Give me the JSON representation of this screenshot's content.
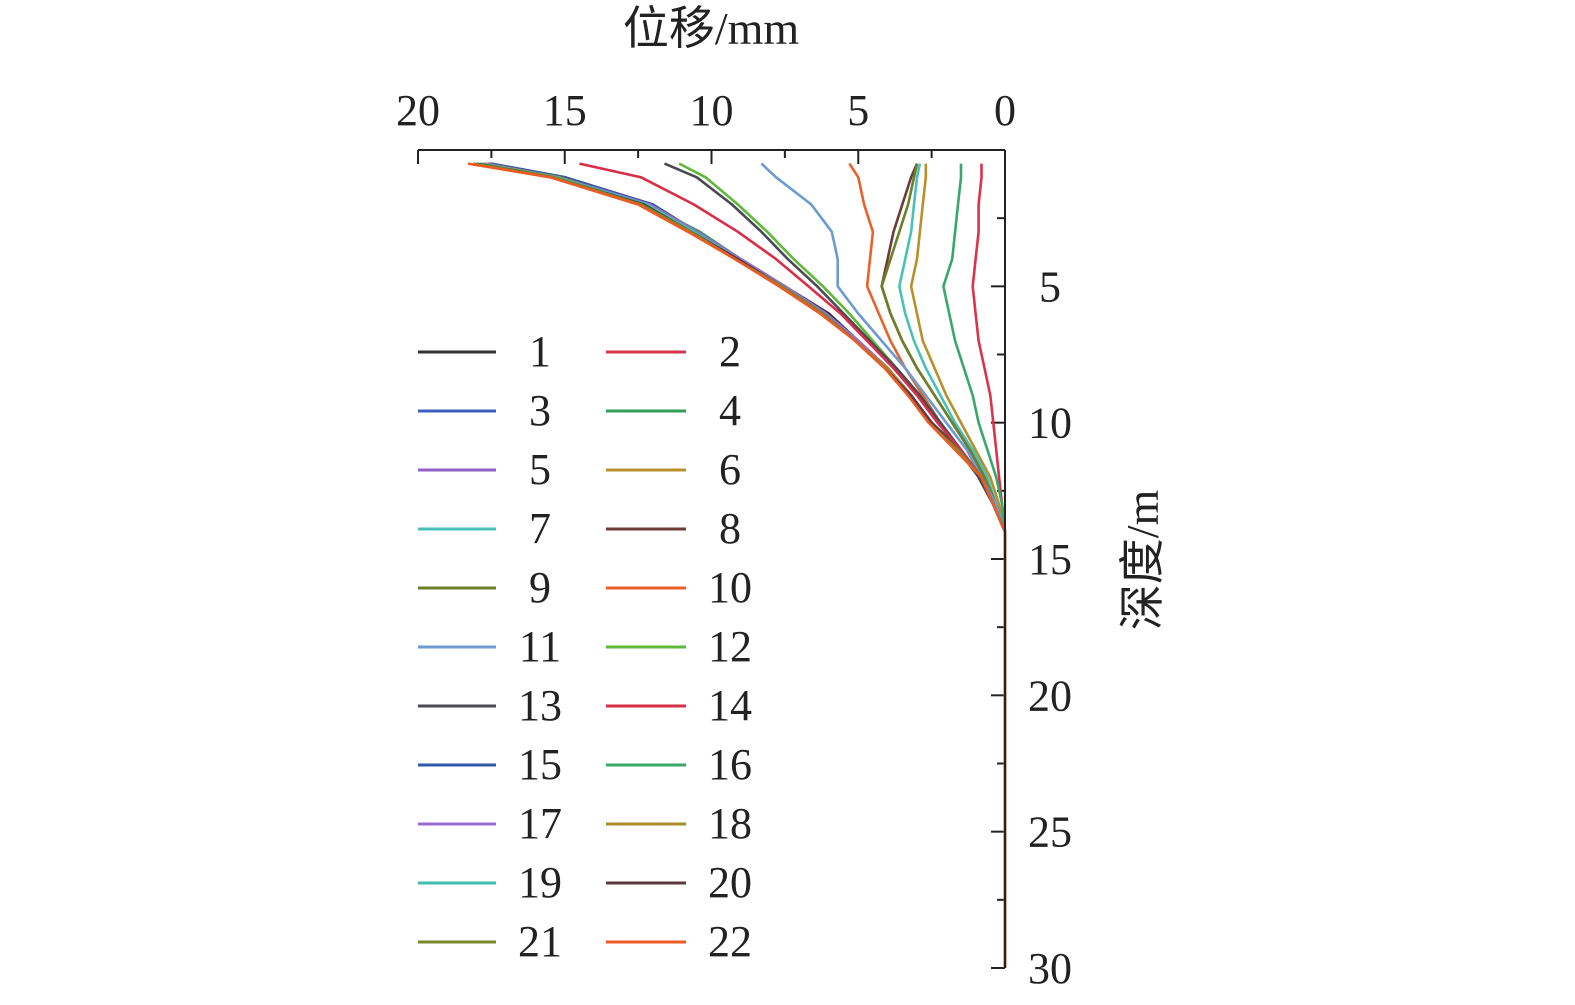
{
  "chart_data": {
    "type": "line",
    "xlabel": "位移/mm",
    "ylabel": "深度/m",
    "xlim": [
      20,
      0
    ],
    "ylim": [
      0,
      30
    ],
    "x_ticks": [
      "20",
      "15",
      "10",
      "5",
      "0"
    ],
    "y_ticks": [
      "5",
      "10",
      "15",
      "20",
      "25",
      "30"
    ],
    "x_axis_position": "top",
    "y_axis_position": "right",
    "x_reversed": true,
    "y_inverted": true,
    "grid": false,
    "legend_placement": "lower-left",
    "depth": [
      0.5,
      1,
      2,
      3,
      4,
      5,
      6,
      7,
      8,
      9,
      10,
      11,
      12,
      13,
      14,
      15,
      16,
      17,
      18,
      19,
      20,
      21,
      22,
      23,
      24,
      25,
      26,
      27,
      28,
      29,
      30
    ],
    "series": [
      {
        "name": "1",
        "color": "#333333",
        "values": [
          17.5,
          15,
          12,
          10.5,
          9,
          7.5,
          6,
          5,
          4,
          3.2,
          2.5,
          1.5,
          0.8,
          0.4,
          0,
          0,
          0,
          0,
          0,
          0,
          0,
          0,
          0,
          0,
          0,
          0,
          0,
          0,
          0,
          0,
          0
        ]
      },
      {
        "name": "2",
        "color": "#d9344a",
        "values": [
          0.8,
          0.8,
          0.9,
          0.9,
          1,
          1.1,
          1,
          0.9,
          0.7,
          0.5,
          0.4,
          0.3,
          0.2,
          0.1,
          0,
          0,
          0,
          0,
          0,
          0,
          0,
          0,
          0,
          0,
          0,
          0,
          0,
          0,
          0,
          0,
          0
        ]
      },
      {
        "name": "3",
        "color": "#3a5fbf",
        "values": [
          17.5,
          15,
          12.2,
          10.5,
          9,
          7.6,
          6.2,
          5,
          4,
          3.2,
          2.5,
          1.6,
          0.8,
          0.4,
          0,
          0,
          0,
          0,
          0,
          0,
          0,
          0,
          0,
          0,
          0,
          0,
          0,
          0,
          0,
          0,
          0
        ]
      },
      {
        "name": "4",
        "color": "#2e9e5a",
        "values": [
          17.6,
          15,
          12.2,
          10.4,
          9,
          7.5,
          6.1,
          5,
          4,
          3.2,
          2.5,
          1.6,
          0.9,
          0.4,
          0,
          0,
          0,
          0,
          0,
          0,
          0,
          0,
          0,
          0,
          0,
          0,
          0,
          0,
          0,
          0,
          0
        ]
      },
      {
        "name": "5",
        "color": "#8e63c9",
        "values": [
          17.6,
          15.1,
          12.1,
          10.5,
          9,
          7.5,
          6.1,
          5,
          4,
          3.2,
          2.5,
          1.6,
          0.8,
          0.4,
          0,
          0,
          0,
          0,
          0,
          0,
          0,
          0,
          0,
          0,
          0,
          0,
          0,
          0,
          0,
          0,
          0
        ]
      },
      {
        "name": "6",
        "color": "#b8902a",
        "values": [
          2.7,
          2.7,
          2.8,
          2.9,
          3,
          3.2,
          3,
          2.8,
          2.4,
          2,
          1.5,
          1,
          0.5,
          0.2,
          0,
          0,
          0,
          0,
          0,
          0,
          0,
          0,
          0,
          0,
          0,
          0,
          0,
          0,
          0,
          0,
          0
        ]
      },
      {
        "name": "7",
        "color": "#48c2b8",
        "values": [
          2.9,
          3,
          3.1,
          3.2,
          3.4,
          3.6,
          3.4,
          3.1,
          2.7,
          2.2,
          1.7,
          1.1,
          0.6,
          0.3,
          0,
          0,
          0,
          0,
          0,
          0,
          0,
          0,
          0,
          0,
          0,
          0,
          0,
          0,
          0,
          0,
          0
        ]
      },
      {
        "name": "8",
        "color": "#6e3b3b",
        "values": [
          3,
          3.2,
          3.5,
          3.8,
          4,
          4.2,
          3.9,
          3.5,
          3,
          2.4,
          1.8,
          1.2,
          0.7,
          0.3,
          0,
          0,
          0,
          0,
          0,
          0,
          0,
          0,
          0,
          0,
          0,
          0,
          0,
          0,
          0,
          0,
          0
        ]
      },
      {
        "name": "9",
        "color": "#6e7f2a",
        "values": [
          3,
          3.1,
          3.3,
          3.6,
          3.9,
          4.2,
          3.9,
          3.5,
          3,
          2.4,
          1.8,
          1.2,
          0.7,
          0.3,
          0,
          0,
          0,
          0,
          0,
          0,
          0,
          0,
          0,
          0,
          0,
          0,
          0,
          0,
          0,
          0,
          0
        ]
      },
      {
        "name": "10",
        "color": "#e8622a",
        "values": [
          5.3,
          5,
          4.8,
          4.5,
          4.6,
          4.7,
          4.3,
          3.9,
          3.4,
          2.8,
          2.2,
          1.5,
          0.9,
          0.4,
          0,
          0,
          0,
          0,
          0,
          0,
          0,
          0,
          0,
          0,
          0,
          0,
          0,
          0,
          0,
          0,
          0
        ]
      },
      {
        "name": "11",
        "color": "#6b9bd1",
        "values": [
          8.3,
          7.8,
          6.6,
          5.9,
          5.7,
          5.7,
          5,
          4.2,
          3.4,
          2.7,
          2,
          1.3,
          0.8,
          0.3,
          0,
          0,
          0,
          0,
          0,
          0,
          0,
          0,
          0,
          0,
          0,
          0,
          0,
          0,
          0,
          0,
          0
        ]
      },
      {
        "name": "12",
        "color": "#5fb83a",
        "values": [
          11.1,
          10.2,
          9.1,
          8.1,
          7.2,
          6.2,
          5.3,
          4.5,
          3.7,
          2.9,
          2.2,
          1.5,
          0.9,
          0.4,
          0,
          0,
          0,
          0,
          0,
          0,
          0,
          0,
          0,
          0,
          0,
          0,
          0,
          0,
          0,
          0,
          0
        ]
      },
      {
        "name": "13",
        "color": "#4a4a52",
        "values": [
          11.6,
          10.5,
          9.3,
          8.3,
          7.4,
          6.4,
          5.5,
          4.6,
          3.7,
          2.9,
          2.2,
          1.5,
          0.9,
          0.4,
          0,
          0,
          0,
          0,
          0,
          0,
          0,
          0,
          0,
          0,
          0,
          0,
          0,
          0,
          0,
          0,
          0
        ]
      },
      {
        "name": "14",
        "color": "#d92e48",
        "values": [
          14.5,
          12.4,
          10.6,
          9.1,
          7.8,
          6.7,
          5.6,
          4.7,
          3.8,
          3,
          2.3,
          1.5,
          0.8,
          0.4,
          0,
          0,
          0,
          0,
          0,
          0,
          0,
          0,
          0,
          0,
          0,
          0,
          0,
          0,
          0,
          0,
          0
        ]
      },
      {
        "name": "15",
        "color": "#2d5aa8",
        "values": [
          17.6,
          15,
          12,
          10.6,
          9.1,
          7.6,
          6.2,
          5,
          4,
          3.2,
          2.5,
          1.6,
          0.8,
          0.4,
          0,
          0,
          0,
          0,
          0,
          0,
          0,
          0,
          0,
          0,
          0,
          0,
          0,
          0,
          0,
          0,
          0
        ]
      },
      {
        "name": "16",
        "color": "#38a86a",
        "values": [
          1.5,
          1.5,
          1.6,
          1.7,
          1.8,
          2.1,
          1.9,
          1.7,
          1.4,
          1.1,
          0.9,
          0.6,
          0.3,
          0.1,
          0,
          0,
          0,
          0,
          0,
          0,
          0,
          0,
          0,
          0,
          0,
          0,
          0,
          0,
          0,
          0,
          0
        ]
      },
      {
        "name": "17",
        "color": "#9a6cd6",
        "values": [
          17.7,
          15.2,
          12.1,
          10.5,
          9,
          7.5,
          6.1,
          5,
          4,
          3.2,
          2.5,
          1.6,
          0.8,
          0.4,
          0,
          0,
          0,
          0,
          0,
          0,
          0,
          0,
          0,
          0,
          0,
          0,
          0,
          0,
          0,
          0,
          0
        ]
      },
      {
        "name": "18",
        "color": "#a88a2a",
        "values": [
          17.8,
          15.2,
          12.3,
          10.6,
          9.1,
          7.6,
          6.2,
          5.1,
          4,
          3.2,
          2.5,
          1.6,
          0.8,
          0.4,
          0,
          0,
          0,
          0,
          0,
          0,
          0,
          0,
          0,
          0,
          0,
          0,
          0,
          0,
          0,
          0,
          0
        ]
      },
      {
        "name": "19",
        "color": "#40bfae",
        "values": [
          17.9,
          15.3,
          12.2,
          10.6,
          9.1,
          7.6,
          6.2,
          5.1,
          4.1,
          3.2,
          2.5,
          1.6,
          0.8,
          0.4,
          0,
          0,
          0,
          0,
          0,
          0,
          0,
          0,
          0,
          0,
          0,
          0,
          0,
          0,
          0,
          0,
          0
        ]
      },
      {
        "name": "20",
        "color": "#5a3a42",
        "values": [
          18,
          15.4,
          12.3,
          10.7,
          9.1,
          7.6,
          6.2,
          5.1,
          4.1,
          3.2,
          2.5,
          1.6,
          0.8,
          0.4,
          0,
          0,
          0,
          0,
          0,
          0,
          0,
          0,
          0,
          0,
          0,
          0,
          0,
          0,
          0,
          0,
          0
        ]
      },
      {
        "name": "21",
        "color": "#7a8a2a",
        "values": [
          18.1,
          15.4,
          12.4,
          10.7,
          9.2,
          7.6,
          6.2,
          5.1,
          4.1,
          3.3,
          2.6,
          1.6,
          0.8,
          0.4,
          0,
          0,
          0,
          0,
          0,
          0,
          0,
          0,
          0,
          0,
          0,
          0,
          0,
          0,
          0,
          0,
          0
        ]
      },
      {
        "name": "22",
        "color": "#ee5a24",
        "values": [
          18.3,
          15.5,
          12.5,
          10.8,
          9.2,
          7.7,
          6.3,
          5.1,
          4.1,
          3.3,
          2.6,
          1.7,
          0.8,
          0.4,
          0,
          0,
          0,
          0,
          0,
          0,
          0,
          0,
          0,
          0,
          0,
          0,
          0,
          0,
          0,
          0,
          0
        ]
      }
    ]
  }
}
